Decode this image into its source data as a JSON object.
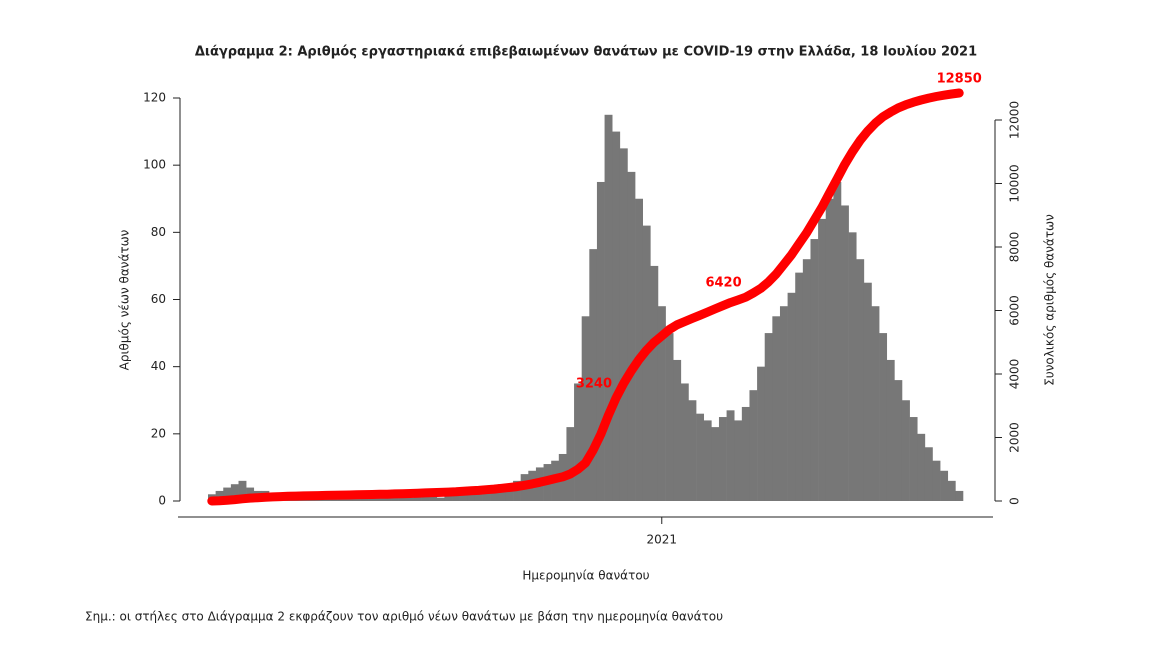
{
  "chart_data": {
    "type": "bar",
    "title": "Διάγραμμα 2: Αριθμός εργαστηριακά επιβεβαιωμένων θανάτων με COVID-19 στην Ελλάδα, 18 Ιουλίου 2021",
    "ylabel": "Αριθμός νέων θανάτων",
    "y2label": "Συνολικός αριθμός θανάτων",
    "xlabel": "Ημερομηνία θανάτου",
    "note": "Σημ.: οι στήλες στο Διάγραμμα 2 εκφράζουν τον αριθμό νέων θανάτων με βάση την ημερομηνία θανάτου",
    "categories": [
      null,
      null,
      null,
      null,
      null,
      null,
      null,
      null,
      null,
      null,
      null,
      null,
      null,
      null,
      null,
      null,
      null,
      null,
      null,
      null,
      null,
      null,
      null,
      null,
      null,
      null,
      null,
      null,
      null,
      null,
      null,
      null,
      null,
      null,
      null,
      null,
      null,
      null,
      null,
      null,
      null,
      null,
      null,
      null,
      null,
      null,
      null,
      null,
      null,
      null,
      null,
      null,
      null,
      null,
      null,
      null,
      null,
      null,
      null,
      "2021",
      null,
      null,
      null,
      null,
      null,
      null,
      null,
      null,
      null,
      null,
      null,
      null,
      null,
      null,
      null,
      null,
      null,
      null,
      null,
      null,
      null,
      null,
      null,
      null,
      null,
      null,
      null,
      null,
      null,
      null,
      null,
      null,
      null,
      null,
      null,
      null,
      null,
      null,
      null
    ],
    "series": [
      {
        "color": "#777777",
        "values": [
          2,
          3,
          4,
          5,
          6,
          4,
          3,
          3,
          2,
          2,
          2,
          1,
          1,
          1,
          1,
          1,
          1,
          1,
          1,
          1,
          1,
          1,
          1,
          1,
          2,
          1,
          1,
          2,
          2,
          2,
          1,
          2,
          2,
          3,
          3,
          3,
          4,
          4,
          5,
          5,
          6,
          8,
          9,
          10,
          11,
          12,
          14,
          22,
          35,
          55,
          75,
          95,
          115,
          110,
          105,
          98,
          90,
          82,
          70,
          58,
          50,
          42,
          35,
          30,
          26,
          24,
          22,
          25,
          27,
          24,
          28,
          33,
          40,
          50,
          55,
          58,
          62,
          68,
          72,
          78,
          84,
          90,
          95,
          88,
          80,
          72,
          65,
          58,
          50,
          42,
          36,
          30,
          25,
          20,
          16,
          12,
          9,
          6,
          3
        ]
      },
      {
        "axis": "y2",
        "color": "#ff0000",
        "values": [
          0,
          10,
          25,
          45,
          70,
          90,
          105,
          120,
          130,
          140,
          150,
          155,
          160,
          165,
          170,
          175,
          180,
          185,
          190,
          195,
          200,
          205,
          210,
          215,
          225,
          230,
          235,
          245,
          255,
          265,
          270,
          280,
          290,
          305,
          320,
          335,
          355,
          375,
          400,
          425,
          455,
          495,
          540,
          590,
          645,
          705,
          760,
          850,
          1000,
          1200,
          1600,
          2100,
          2700,
          3240,
          3700,
          4100,
          4450,
          4750,
          5000,
          5200,
          5400,
          5550,
          5650,
          5750,
          5850,
          5950,
          6050,
          6150,
          6250,
          6330,
          6420,
          6550,
          6700,
          6900,
          7150,
          7450,
          7750,
          8100,
          8450,
          8850,
          9250,
          9700,
          10150,
          10600,
          11000,
          11350,
          11650,
          11900,
          12100,
          12250,
          12380,
          12480,
          12560,
          12630,
          12690,
          12740,
          12780,
          12820,
          12850
        ],
        "value_labels": [
          null,
          null,
          null,
          null,
          null,
          null,
          null,
          null,
          null,
          null,
          null,
          null,
          null,
          null,
          null,
          null,
          null,
          null,
          null,
          null,
          null,
          null,
          null,
          null,
          null,
          null,
          null,
          null,
          null,
          null,
          null,
          null,
          null,
          null,
          null,
          null,
          null,
          null,
          null,
          null,
          null,
          null,
          null,
          null,
          null,
          null,
          null,
          null,
          null,
          null,
          null,
          null,
          null,
          "3240",
          null,
          null,
          null,
          null,
          null,
          null,
          null,
          null,
          null,
          null,
          null,
          null,
          null,
          null,
          null,
          null,
          "6420",
          null,
          null,
          null,
          null,
          null,
          null,
          null,
          null,
          null,
          null,
          null,
          null,
          null,
          null,
          null,
          null,
          null,
          null,
          null,
          null,
          null,
          null,
          null,
          null,
          null,
          null,
          null,
          "12850"
        ]
      }
    ],
    "ylim": [
      0,
      120
    ],
    "yticks": [
      0,
      20,
      40,
      60,
      80,
      100,
      120
    ],
    "y2lim": [
      0,
      12000
    ],
    "y2ticks": [
      0,
      2000,
      4000,
      6000,
      8000,
      10000,
      12000
    ]
  }
}
